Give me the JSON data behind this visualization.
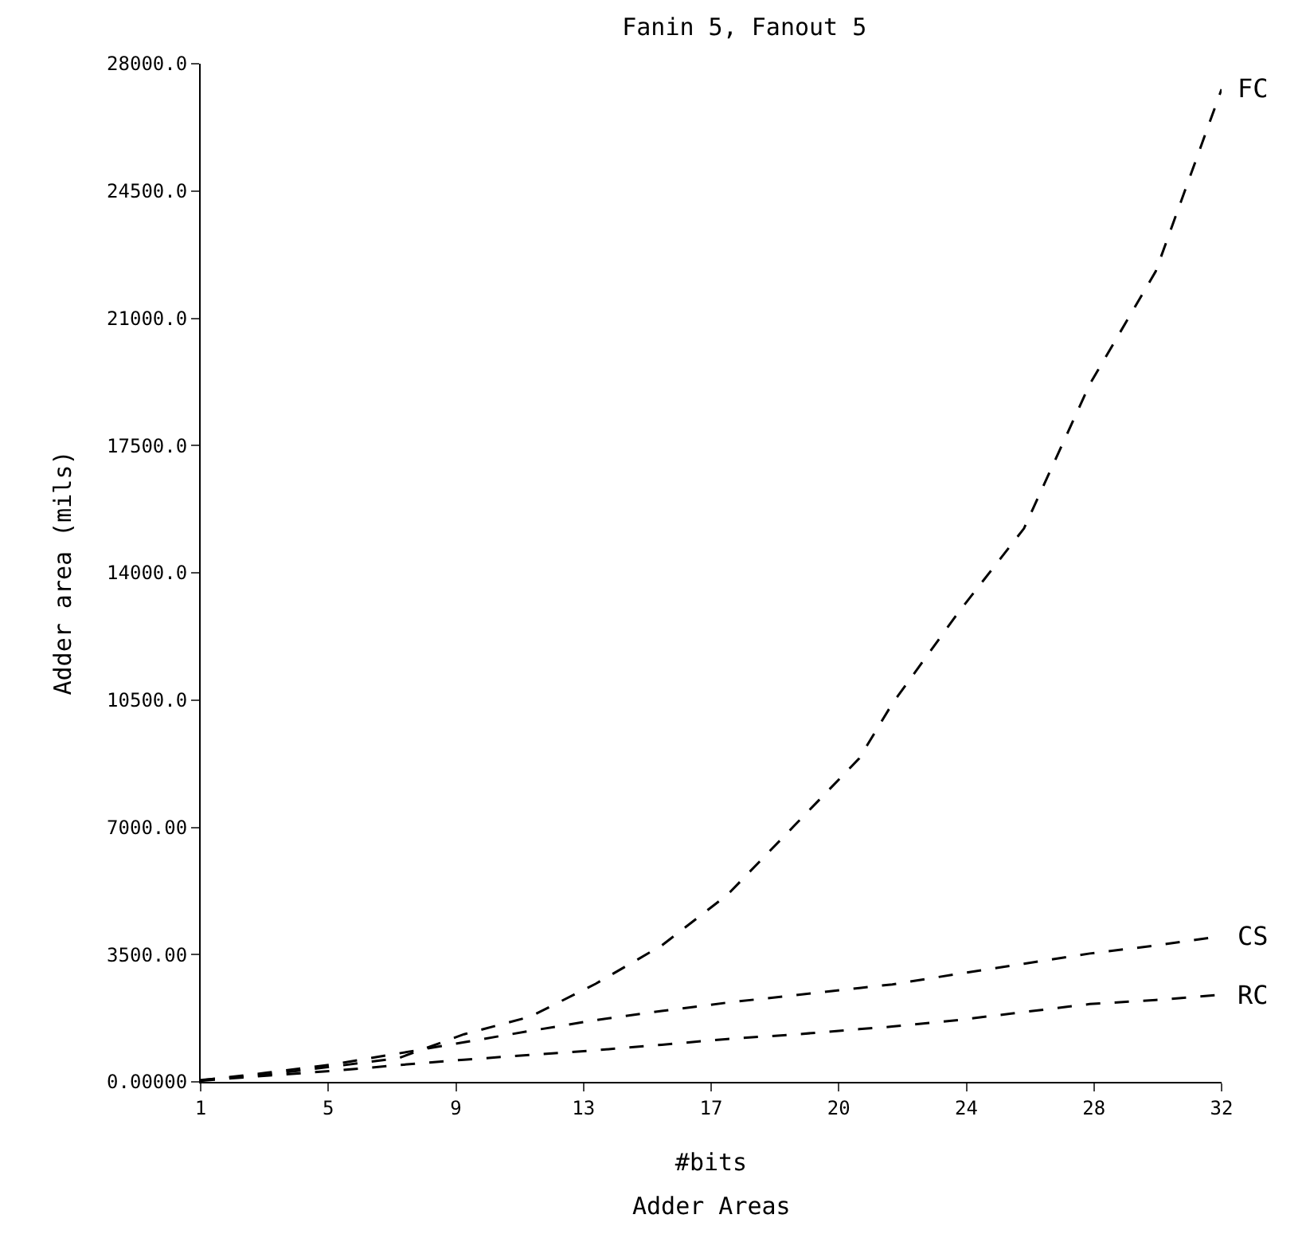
{
  "chart_data": {
    "type": "line",
    "title": "Fanin 5, Fanout 5",
    "xlabel": "#bits",
    "ylabel": "Adder area (mils)",
    "annotations": [
      "Adder Areas"
    ],
    "x": [
      1,
      3,
      5,
      7,
      9,
      11,
      13,
      15,
      17,
      19,
      21,
      22,
      24,
      26,
      28,
      30,
      32
    ],
    "series": [
      {
        "name": "FC",
        "color": "#000000",
        "values": [
          50,
          200,
          420,
          650,
          1310,
          1790,
          2700,
          3750,
          5150,
          7020,
          8900,
          10400,
          12900,
          15220,
          19190,
          22290,
          27300
        ]
      },
      {
        "name": "CS",
        "color": "#000000",
        "values": [
          40,
          250,
          480,
          780,
          1090,
          1400,
          1700,
          1950,
          2180,
          2380,
          2580,
          2680,
          2970,
          3250,
          3530,
          3750,
          4010
        ]
      },
      {
        "name": "RC",
        "color": "#000000",
        "values": [
          30,
          170,
          300,
          460,
          610,
          740,
          870,
          1020,
          1180,
          1300,
          1450,
          1520,
          1700,
          1920,
          2140,
          2250,
          2400
        ]
      }
    ],
    "xlim": [
      1,
      32
    ],
    "xticks": [
      {
        "value": 1,
        "label": "1"
      },
      {
        "value": 4.875,
        "label": "5"
      },
      {
        "value": 8.75,
        "label": "9"
      },
      {
        "value": 12.625,
        "label": "13"
      },
      {
        "value": 16.5,
        "label": "17"
      },
      {
        "value": 20.375,
        "label": "20"
      },
      {
        "value": 24.25,
        "label": "24"
      },
      {
        "value": 28.125,
        "label": "28"
      },
      {
        "value": 32,
        "label": "32"
      }
    ],
    "ylim": [
      0,
      28000
    ],
    "yticks": [
      {
        "value": 0,
        "label": "0.00000"
      },
      {
        "value": 3500,
        "label": "3500.00"
      },
      {
        "value": 7000,
        "label": "7000.00"
      },
      {
        "value": 10500,
        "label": "10500.0"
      },
      {
        "value": 14000,
        "label": "14000.0"
      },
      {
        "value": 17500,
        "label": "17500.0"
      },
      {
        "value": 21000,
        "label": "21000.0"
      },
      {
        "value": 24500,
        "label": "24500.0"
      },
      {
        "value": 28000,
        "label": "28000.0"
      }
    ],
    "grid": false,
    "legend": false,
    "marker": "none",
    "line_style": "dashed"
  }
}
